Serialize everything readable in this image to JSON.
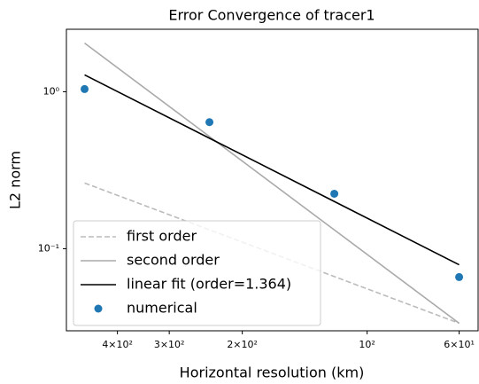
{
  "chart_data": {
    "type": "line",
    "title": "Error Convergence of tracer1",
    "xlabel": "Horizontal resolution (km)",
    "ylabel": "L2 norm",
    "xscale": "log",
    "yscale": "log",
    "xlim": [
      531,
      54
    ],
    "ylim": [
      0.03,
      2.5
    ],
    "xticks": [
      {
        "value": 400,
        "label": "4×10²"
      },
      {
        "value": 300,
        "label": "3×10²"
      },
      {
        "value": 200,
        "label": "2×10²"
      },
      {
        "value": 100,
        "label": "10²"
      },
      {
        "value": 60,
        "label": "6×10¹"
      }
    ],
    "yticks": [
      {
        "value": 1,
        "label": "10⁰"
      },
      {
        "value": 0.1,
        "label": "10⁻¹"
      }
    ],
    "legend": "lower left",
    "series": [
      {
        "name": "first order",
        "kind": "line",
        "dashed": true,
        "color": "#bbbbbb",
        "x": [
          480,
          60
        ],
        "values": [
          0.262,
          0.0335
        ]
      },
      {
        "name": "second order",
        "kind": "line",
        "dashed": false,
        "color": "#aaaaaa",
        "x": [
          480,
          60
        ],
        "values": [
          2.04,
          0.0335
        ]
      },
      {
        "name": "linear fit (order=1.364)",
        "kind": "line",
        "dashed": false,
        "color": "#000000",
        "x": [
          480,
          60
        ],
        "values": [
          1.28,
          0.079
        ]
      },
      {
        "name": "numerical",
        "kind": "scatter",
        "dashed": false,
        "color": "#1f77b4",
        "x": [
          480,
          240,
          120,
          60
        ],
        "values": [
          1.04,
          0.64,
          0.224,
          0.066
        ]
      }
    ]
  }
}
